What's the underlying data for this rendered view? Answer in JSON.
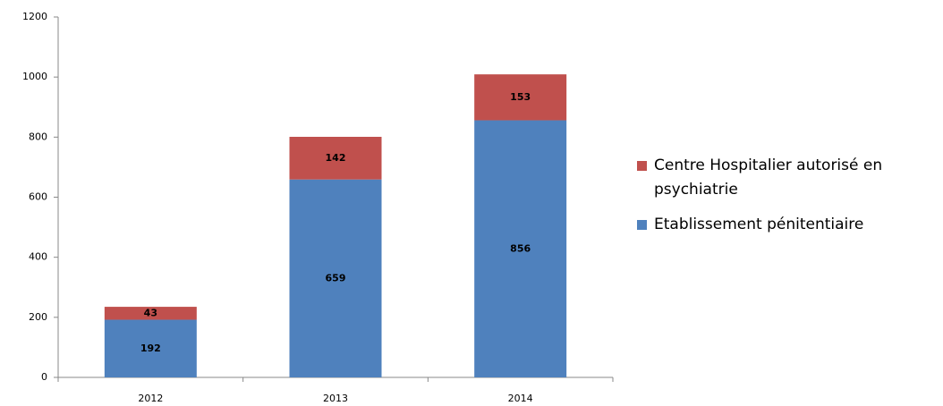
{
  "chart_data": {
    "type": "stacked_bar",
    "categories": [
      "2012",
      "2013",
      "2014"
    ],
    "series": [
      {
        "name": "Etablissement pénitentiaire",
        "color": "#4f81bd",
        "values": [
          192,
          659,
          856
        ]
      },
      {
        "name": "Centre Hospitalier autorisé en psychiatrie",
        "color": "#c0504d",
        "values": [
          43,
          142,
          153
        ]
      }
    ],
    "ylim": [
      0,
      1200
    ],
    "yticks": [
      0,
      200,
      400,
      600,
      800,
      1000,
      1200
    ],
    "grid": false,
    "legend": "right"
  }
}
